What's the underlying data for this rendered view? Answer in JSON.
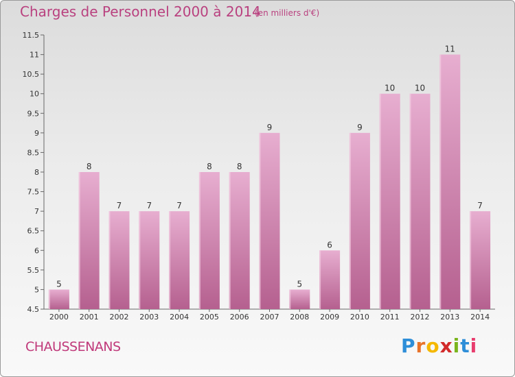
{
  "title": "Charges de Personnel 2000 à 2014",
  "subtitle": "(en milliers d'€)",
  "commune": "CHAUSSENANS",
  "logo": {
    "text": "Proxiti",
    "letters": [
      "P",
      "r",
      "o",
      "x",
      "i",
      "t",
      "i"
    ],
    "colors": [
      "#2e8ed8",
      "#e8732a",
      "#f5b800",
      "#d22a2a",
      "#7ab51d",
      "#2e8ed8",
      "#e83d6e"
    ]
  },
  "colors": {
    "bar_top": "#e7aed0",
    "bar_bottom": "#b5608f",
    "title": "#b9417f"
  },
  "chart_data": {
    "type": "bar",
    "categories": [
      "2000",
      "2001",
      "2002",
      "2003",
      "2004",
      "2005",
      "2006",
      "2007",
      "2008",
      "2009",
      "2010",
      "2011",
      "2012",
      "2013",
      "2014"
    ],
    "values": [
      5,
      8,
      7,
      7,
      7,
      8,
      8,
      9,
      5,
      6,
      9,
      10,
      10,
      11,
      7
    ],
    "data_labels": [
      "5",
      "8",
      "7",
      "7",
      "7",
      "8",
      "8",
      "9",
      "5",
      "6",
      "9",
      "10",
      "10",
      "11",
      "7"
    ],
    "ylim": [
      4.5,
      11.5
    ],
    "yticks": [
      "4.5",
      "5",
      "5.5",
      "6",
      "6.5",
      "7",
      "7.5",
      "8",
      "8.5",
      "9",
      "9.5",
      "10",
      "10.5",
      "11",
      "11.5"
    ],
    "grid": false,
    "xlabel": "",
    "ylabel": ""
  }
}
